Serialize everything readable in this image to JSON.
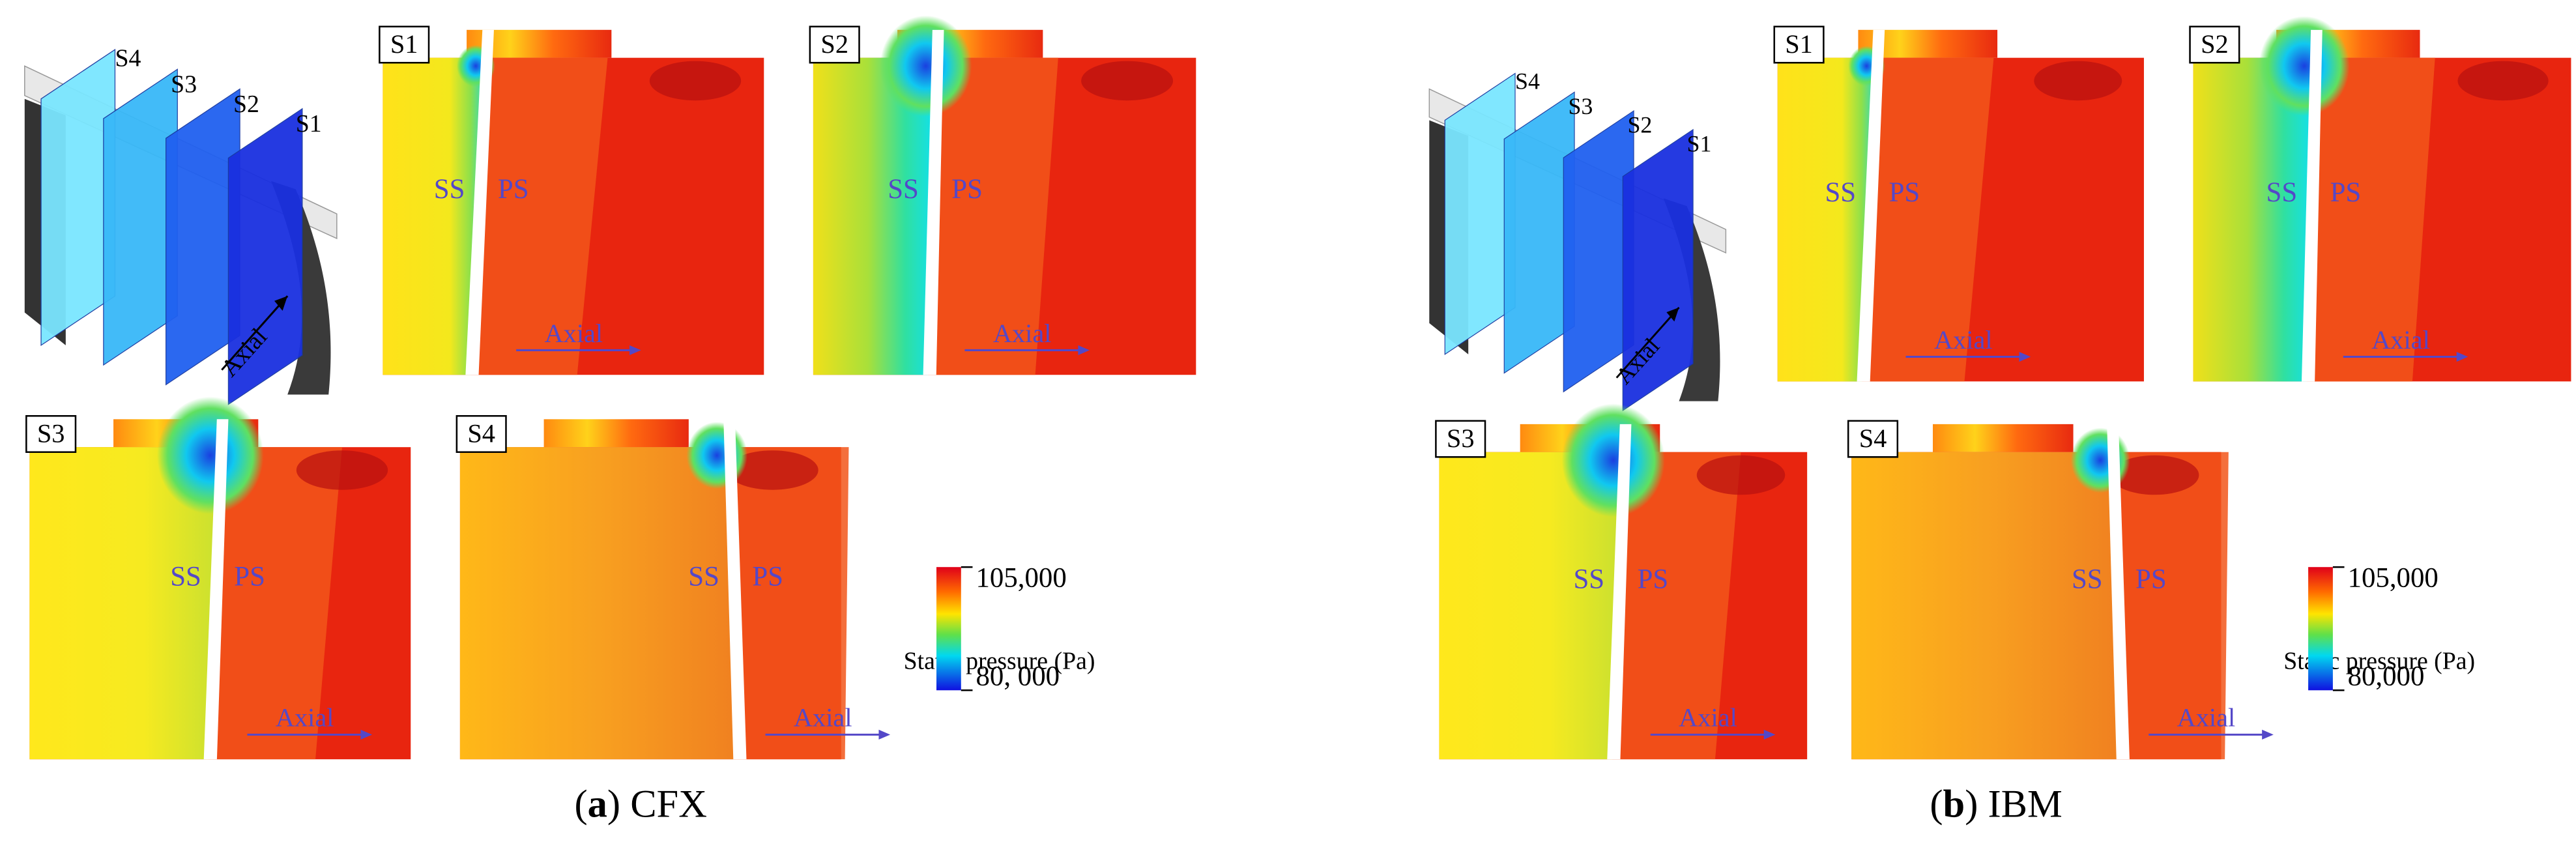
{
  "panels": [
    {
      "caption": {
        "open": "(",
        "letter": "a",
        "rest": ") CFX"
      },
      "inset_labels": [
        "S4",
        "S3",
        "S2",
        "S1"
      ],
      "inset_axial": "Axial",
      "sections": [
        {
          "label": "S1",
          "ss": "SS",
          "ps": "PS",
          "axial": "Axial"
        },
        {
          "label": "S2",
          "ss": "SS",
          "ps": "PS",
          "axial": "Axial"
        },
        {
          "label": "S3",
          "ss": "SS",
          "ps": "PS",
          "axial": "Axial"
        },
        {
          "label": "S4",
          "ss": "SS",
          "ps": "PS",
          "axial": "Axial"
        }
      ],
      "colorbar": {
        "title": "Static pressure (Pa)",
        "max": "105,000",
        "min": "80, 000"
      }
    },
    {
      "caption": {
        "open": "(",
        "letter": "b",
        "rest": ") IBM"
      },
      "inset_labels": [
        "S4",
        "S3",
        "S2",
        "S1"
      ],
      "inset_axial": "Axial",
      "sections": [
        {
          "label": "S1",
          "ss": "SS",
          "ps": "PS",
          "axial": "Axial"
        },
        {
          "label": "S2",
          "ss": "SS",
          "ps": "PS",
          "axial": "Axial"
        },
        {
          "label": "S3",
          "ss": "SS",
          "ps": "PS",
          "axial": "Axial"
        },
        {
          "label": "S4",
          "ss": "SS",
          "ps": "PS",
          "axial": "Axial"
        }
      ],
      "colorbar": {
        "title": "Static pressure (Pa)",
        "max": "105,000",
        "min": "80,000"
      }
    }
  ]
}
